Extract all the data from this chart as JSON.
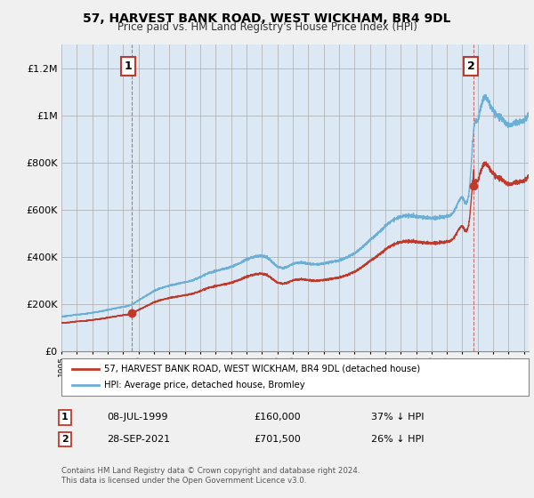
{
  "title": "57, HARVEST BANK ROAD, WEST WICKHAM, BR4 9DL",
  "subtitle": "Price paid vs. HM Land Registry's House Price Index (HPI)",
  "hpi_label": "HPI: Average price, detached house, Bromley",
  "price_label": "57, HARVEST BANK ROAD, WEST WICKHAM, BR4 9DL (detached house)",
  "annotation1_num": "1",
  "annotation1_date": "08-JUL-1999",
  "annotation1_price": 160000,
  "annotation1_text": "37% ↓ HPI",
  "annotation2_num": "2",
  "annotation2_date": "28-SEP-2021",
  "annotation2_price": 701500,
  "annotation2_text": "26% ↓ HPI",
  "footer": "Contains HM Land Registry data © Crown copyright and database right 2024.\nThis data is licensed under the Open Government Licence v3.0.",
  "hpi_color": "#6baed6",
  "price_color": "#c0392b",
  "background_color": "#f0f0f0",
  "plot_bg_color": "#dce9f5",
  "ylim": [
    0,
    1300000
  ],
  "yticks": [
    0,
    200000,
    400000,
    600000,
    800000,
    1000000,
    1200000
  ],
  "ytick_labels": [
    "£0",
    "£200K",
    "£400K",
    "£600K",
    "£800K",
    "£1M",
    "£1.2M"
  ],
  "sale1_x": 1999.54,
  "sale1_y": 160000,
  "sale2_x": 2021.75,
  "sale2_y": 701500,
  "xmin": 1995.0,
  "xmax": 2025.3
}
